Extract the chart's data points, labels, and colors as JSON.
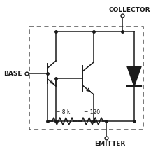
{
  "labels": {
    "base": "BASE",
    "collector": "COLLECTOR",
    "emitter": "EMITTER",
    "r1": "= 8 k",
    "r2": "= 120"
  },
  "line_color": "#1a1a1a",
  "text_color": "#1a1a1a",
  "dashed_color": "#555555"
}
